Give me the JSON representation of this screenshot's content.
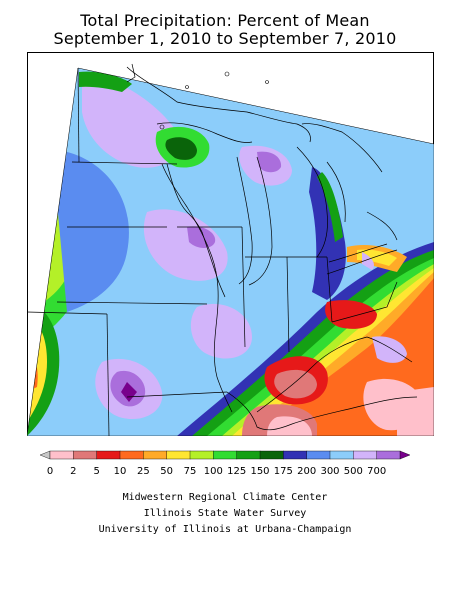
{
  "title": {
    "line1": "Total Precipitation: Percent of Mean",
    "line2": "September 1, 2010 to September 7, 2010"
  },
  "legend": {
    "bins": [
      {
        "label": "0",
        "color": "#c8c8c8"
      },
      {
        "label": "2",
        "color": "#ffc0cb"
      },
      {
        "label": "5",
        "color": "#e07878"
      },
      {
        "label": "10",
        "color": "#e61919"
      },
      {
        "label": "25",
        "color": "#ff6a1e"
      },
      {
        "label": "50",
        "color": "#ffaa28"
      },
      {
        "label": "75",
        "color": "#ffe632"
      },
      {
        "label": "100",
        "color": "#b4f028"
      },
      {
        "label": "125",
        "color": "#32dc32"
      },
      {
        "label": "150",
        "color": "#14a014"
      },
      {
        "label": "175",
        "color": "#0a640a"
      },
      {
        "label": "200",
        "color": "#3232b4"
      },
      {
        "label": "300",
        "color": "#5a8cf0"
      },
      {
        "label": "500",
        "color": "#8ccdfa"
      },
      {
        "label": "700",
        "color": "#d2b4fa"
      },
      {
        "label": "",
        "color": "#aa6edc"
      },
      {
        "label": "",
        "color": "#78008c"
      }
    ]
  },
  "credits": {
    "line1": "Midwestern Regional Climate Center",
    "line2": "Illinois State Water Survey",
    "line3": "University of Illinois at Urbana-Champaign"
  }
}
